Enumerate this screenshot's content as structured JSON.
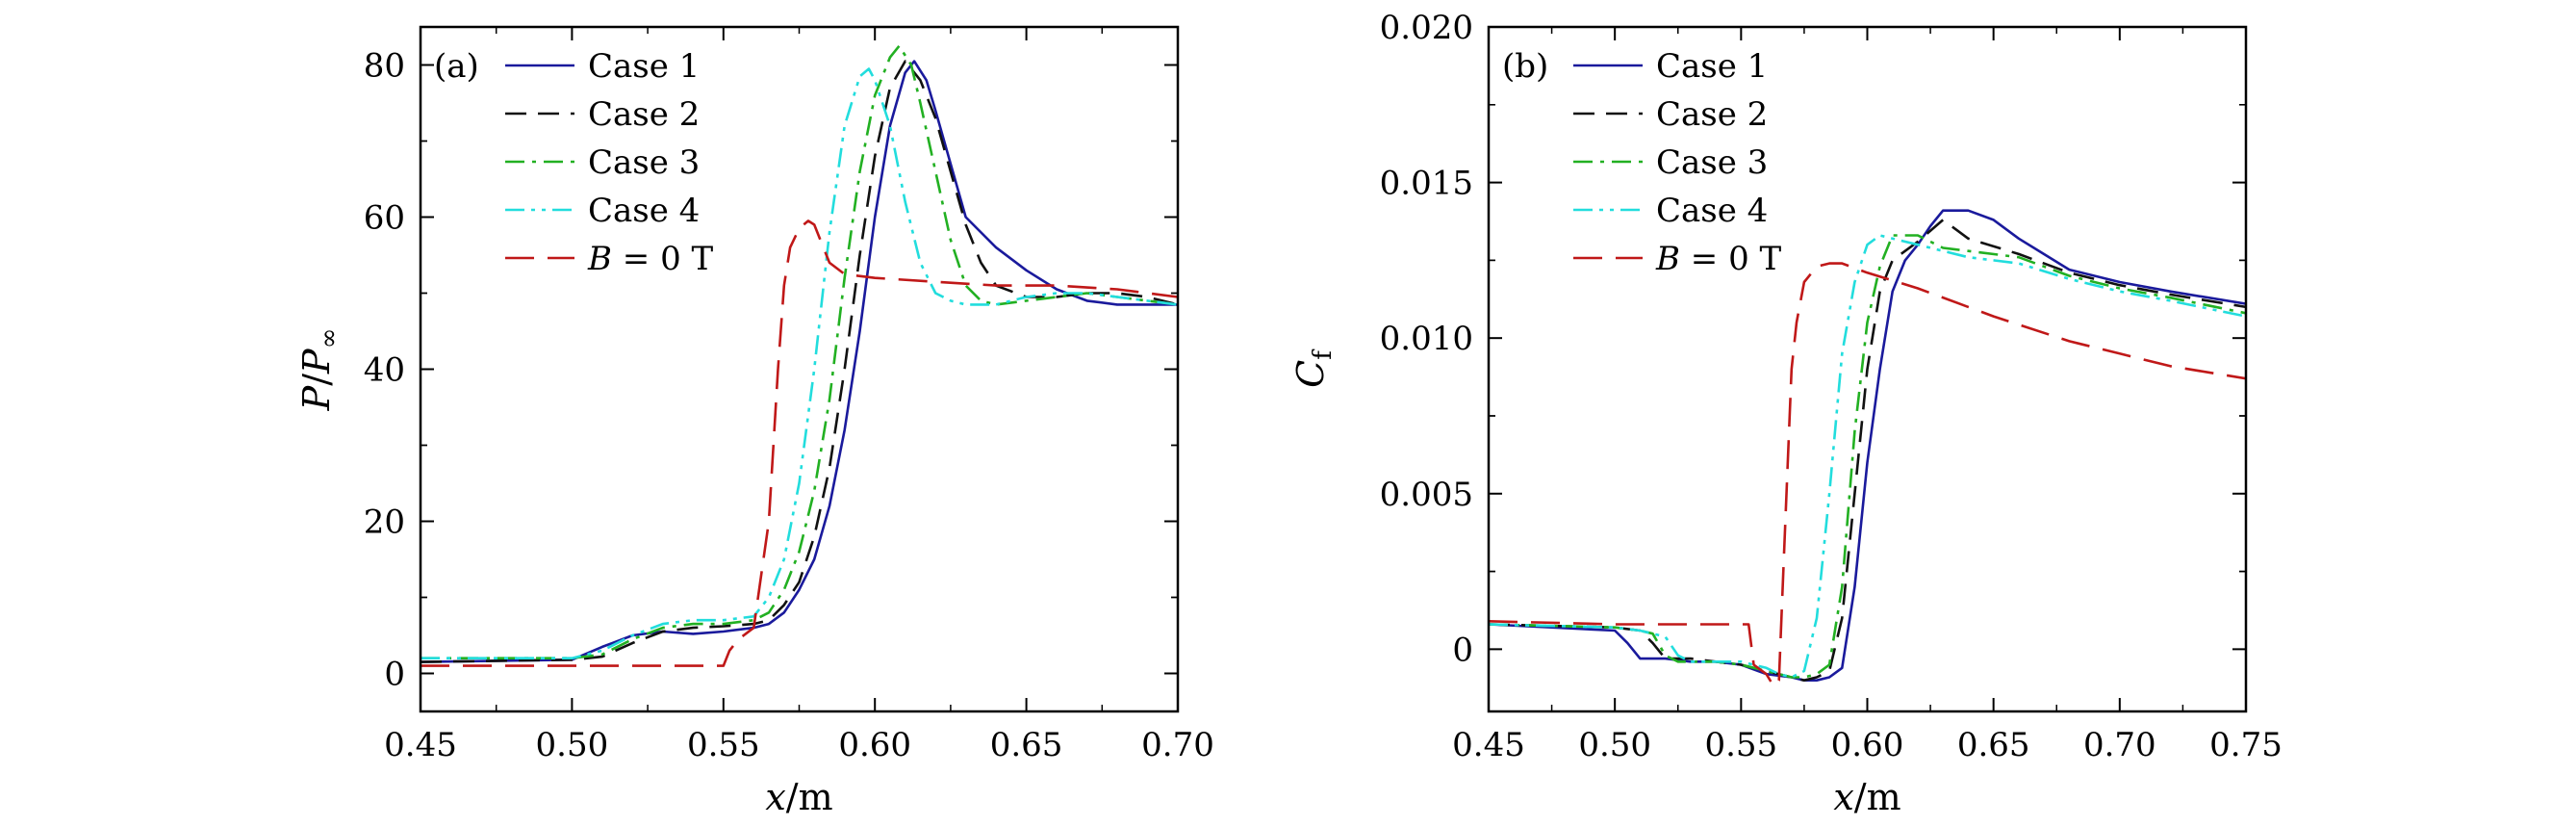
{
  "chart_data": [
    {
      "type": "line",
      "panel_label": "(a)",
      "xlabel": "x/m",
      "ylabel": "P/P∞",
      "xlim": [
        0.45,
        0.7
      ],
      "ylim": [
        -5,
        85
      ],
      "xticks": [
        "0.45",
        "0.50",
        "0.55",
        "0.60",
        "0.65",
        "0.70"
      ],
      "yticks": [
        "0",
        "20",
        "40",
        "60",
        "80"
      ],
      "xtick_values": [
        0.45,
        0.5,
        0.55,
        0.6,
        0.65,
        0.7
      ],
      "ytick_values": [
        0,
        20,
        40,
        60,
        80
      ],
      "legend_position": "top-left",
      "grid": false,
      "series": [
        {
          "name": "Case 1",
          "color": "#1a1a9c",
          "dash": "solid",
          "x": [
            0.45,
            0.5,
            0.51,
            0.52,
            0.53,
            0.54,
            0.55,
            0.56,
            0.565,
            0.57,
            0.575,
            0.58,
            0.585,
            0.59,
            0.595,
            0.6,
            0.605,
            0.61,
            0.613,
            0.617,
            0.62,
            0.625,
            0.63,
            0.64,
            0.65,
            0.66,
            0.67,
            0.68,
            0.69,
            0.7
          ],
          "y": [
            1.5,
            1.8,
            3.5,
            5.0,
            5.5,
            5.2,
            5.5,
            6.0,
            6.5,
            8.0,
            11.0,
            15.0,
            22.0,
            32.0,
            45.0,
            60.0,
            72.0,
            79.0,
            80.5,
            78.0,
            74.0,
            67.0,
            60.0,
            56.0,
            53.0,
            50.5,
            49.0,
            48.5,
            48.5,
            48.5
          ]
        },
        {
          "name": "Case 2",
          "color": "#111111",
          "dash": "dashed",
          "x": [
            0.45,
            0.5,
            0.51,
            0.52,
            0.53,
            0.54,
            0.55,
            0.56,
            0.565,
            0.57,
            0.575,
            0.58,
            0.585,
            0.59,
            0.595,
            0.6,
            0.605,
            0.61,
            0.615,
            0.62,
            0.625,
            0.63,
            0.635,
            0.64,
            0.65,
            0.66,
            0.67,
            0.68,
            0.69,
            0.7
          ],
          "y": [
            1.5,
            1.8,
            2.2,
            4.0,
            5.5,
            6.0,
            6.2,
            6.5,
            7.0,
            9.0,
            12.0,
            18.0,
            27.0,
            40.0,
            55.0,
            68.0,
            77.0,
            80.5,
            78.0,
            73.0,
            66.0,
            59.0,
            54.0,
            51.0,
            49.5,
            49.5,
            50.0,
            50.0,
            49.5,
            48.5
          ]
        },
        {
          "name": "Case 3",
          "color": "#22b022",
          "dash": "dashdot",
          "x": [
            0.45,
            0.5,
            0.51,
            0.52,
            0.53,
            0.54,
            0.55,
            0.56,
            0.565,
            0.57,
            0.575,
            0.58,
            0.585,
            0.59,
            0.595,
            0.6,
            0.605,
            0.608,
            0.612,
            0.615,
            0.62,
            0.625,
            0.63,
            0.635,
            0.64,
            0.65,
            0.66,
            0.67,
            0.68,
            0.69,
            0.7
          ],
          "y": [
            2.0,
            2.0,
            2.5,
            4.5,
            6.0,
            6.5,
            6.5,
            7.0,
            8.0,
            11.0,
            16.0,
            24.0,
            36.0,
            52.0,
            66.0,
            76.0,
            81.0,
            82.5,
            80.0,
            75.0,
            66.0,
            57.0,
            51.0,
            49.0,
            48.5,
            49.0,
            49.5,
            50.0,
            49.5,
            49.0,
            48.5
          ]
        },
        {
          "name": "Case 4",
          "color": "#22dddd",
          "dash": "dashdotdot",
          "x": [
            0.45,
            0.5,
            0.51,
            0.52,
            0.53,
            0.54,
            0.55,
            0.56,
            0.565,
            0.57,
            0.575,
            0.58,
            0.585,
            0.59,
            0.595,
            0.598,
            0.6,
            0.605,
            0.61,
            0.615,
            0.62,
            0.625,
            0.63,
            0.64,
            0.65,
            0.66,
            0.67,
            0.68,
            0.69,
            0.7
          ],
          "y": [
            2.0,
            2.0,
            3.0,
            5.0,
            6.5,
            7.0,
            7.0,
            7.5,
            10.0,
            15.0,
            25.0,
            40.0,
            58.0,
            72.0,
            78.5,
            79.5,
            78.0,
            72.0,
            62.0,
            54.0,
            50.0,
            49.0,
            48.5,
            48.5,
            49.5,
            50.0,
            50.0,
            49.5,
            49.0,
            48.5
          ]
        },
        {
          "name": "B = 0 T",
          "color": "#c01818",
          "dash": "longdash",
          "x": [
            0.45,
            0.5,
            0.54,
            0.55,
            0.552,
            0.555,
            0.56,
            0.565,
            0.568,
            0.57,
            0.572,
            0.575,
            0.578,
            0.58,
            0.582,
            0.585,
            0.59,
            0.6,
            0.62,
            0.64,
            0.66,
            0.68,
            0.7
          ],
          "y": [
            1.0,
            1.0,
            1.0,
            1.0,
            3.0,
            4.5,
            6.0,
            20.0,
            40.0,
            51.0,
            56.0,
            58.5,
            59.5,
            59.0,
            57.0,
            54.0,
            52.5,
            52.0,
            51.5,
            51.0,
            51.0,
            50.5,
            49.5
          ]
        }
      ]
    },
    {
      "type": "line",
      "panel_label": "(b)",
      "xlabel": "x/m",
      "ylabel": "Cf",
      "xlim": [
        0.45,
        0.75
      ],
      "ylim": [
        -0.002,
        0.02
      ],
      "xticks": [
        "0.45",
        "0.50",
        "0.55",
        "0.60",
        "0.65",
        "0.70",
        "0.75"
      ],
      "yticks": [
        "0",
        "0.005",
        "0.010",
        "0.015",
        "0.020"
      ],
      "xtick_values": [
        0.45,
        0.5,
        0.55,
        0.6,
        0.65,
        0.7,
        0.75
      ],
      "ytick_values": [
        0,
        0.005,
        0.01,
        0.015,
        0.02
      ],
      "legend_position": "top-left",
      "grid": false,
      "series": [
        {
          "name": "Case 1",
          "color": "#1a1a9c",
          "dash": "solid",
          "x": [
            0.45,
            0.5,
            0.505,
            0.51,
            0.52,
            0.53,
            0.54,
            0.55,
            0.56,
            0.57,
            0.575,
            0.58,
            0.585,
            0.59,
            0.595,
            0.6,
            0.605,
            0.61,
            0.615,
            0.62,
            0.625,
            0.63,
            0.64,
            0.65,
            0.66,
            0.68,
            0.7,
            0.72,
            0.75
          ],
          "y": [
            0.0008,
            0.0006,
            0.0002,
            -0.0003,
            -0.0003,
            -0.0004,
            -0.0004,
            -0.0005,
            -0.0008,
            -0.0009,
            -0.001,
            -0.001,
            -0.0009,
            -0.0006,
            0.002,
            0.006,
            0.009,
            0.0115,
            0.0125,
            0.013,
            0.0136,
            0.0141,
            0.0141,
            0.0138,
            0.0132,
            0.0122,
            0.0118,
            0.0115,
            0.0111
          ]
        },
        {
          "name": "Case 2",
          "color": "#111111",
          "dash": "dashed",
          "x": [
            0.45,
            0.5,
            0.51,
            0.515,
            0.52,
            0.53,
            0.54,
            0.55,
            0.56,
            0.57,
            0.575,
            0.58,
            0.585,
            0.59,
            0.595,
            0.6,
            0.605,
            0.61,
            0.62,
            0.63,
            0.64,
            0.66,
            0.68,
            0.7,
            0.72,
            0.75
          ],
          "y": [
            0.0008,
            0.0007,
            0.0006,
            0.0002,
            -0.0003,
            -0.0003,
            -0.0004,
            -0.0005,
            -0.0007,
            -0.0009,
            -0.001,
            -0.0009,
            -0.0007,
            0.001,
            0.005,
            0.009,
            0.0115,
            0.0125,
            0.0131,
            0.0138,
            0.0132,
            0.0127,
            0.0121,
            0.0117,
            0.0114,
            0.011
          ]
        },
        {
          "name": "Case 3",
          "color": "#22b022",
          "dash": "dashdot",
          "x": [
            0.45,
            0.5,
            0.51,
            0.515,
            0.52,
            0.525,
            0.53,
            0.54,
            0.55,
            0.56,
            0.57,
            0.575,
            0.58,
            0.585,
            0.59,
            0.595,
            0.6,
            0.605,
            0.61,
            0.62,
            0.63,
            0.64,
            0.66,
            0.68,
            0.7,
            0.72,
            0.75
          ],
          "y": [
            0.0008,
            0.0007,
            0.0006,
            0.0005,
            -0.0002,
            -0.0004,
            -0.0004,
            -0.0004,
            -0.0005,
            -0.0007,
            -0.0009,
            -0.0009,
            -0.0008,
            -0.0005,
            0.002,
            0.007,
            0.0105,
            0.0123,
            0.0133,
            0.0133,
            0.0129,
            0.0128,
            0.0126,
            0.012,
            0.0116,
            0.0113,
            0.0108
          ]
        },
        {
          "name": "Case 4",
          "color": "#22dddd",
          "dash": "dashdotdot",
          "x": [
            0.45,
            0.5,
            0.51,
            0.515,
            0.52,
            0.525,
            0.53,
            0.54,
            0.55,
            0.56,
            0.565,
            0.57,
            0.575,
            0.58,
            0.585,
            0.59,
            0.595,
            0.6,
            0.605,
            0.61,
            0.62,
            0.63,
            0.64,
            0.66,
            0.68,
            0.7,
            0.72,
            0.75
          ],
          "y": [
            0.0008,
            0.0007,
            0.0006,
            0.0005,
            0.0004,
            -0.0002,
            -0.0004,
            -0.0004,
            -0.0004,
            -0.0006,
            -0.0008,
            -0.0009,
            -0.0007,
            0.001,
            0.005,
            0.0095,
            0.0118,
            0.013,
            0.0133,
            0.0132,
            0.013,
            0.0128,
            0.0126,
            0.0124,
            0.0119,
            0.0115,
            0.0112,
            0.0107
          ]
        },
        {
          "name": "B = 0 T",
          "color": "#c01818",
          "dash": "longdash",
          "x": [
            0.45,
            0.5,
            0.55,
            0.553,
            0.555,
            0.56,
            0.563,
            0.565,
            0.567,
            0.57,
            0.572,
            0.575,
            0.58,
            0.585,
            0.59,
            0.6,
            0.62,
            0.65,
            0.68,
            0.7,
            0.72,
            0.75
          ],
          "y": [
            0.0009,
            0.0008,
            0.0008,
            0.0008,
            -0.0005,
            -0.0008,
            -0.0012,
            -0.001,
            0.003,
            0.009,
            0.0105,
            0.0118,
            0.0123,
            0.0124,
            0.0124,
            0.0121,
            0.0116,
            0.0107,
            0.0099,
            0.0095,
            0.0091,
            0.0087
          ]
        }
      ]
    }
  ]
}
